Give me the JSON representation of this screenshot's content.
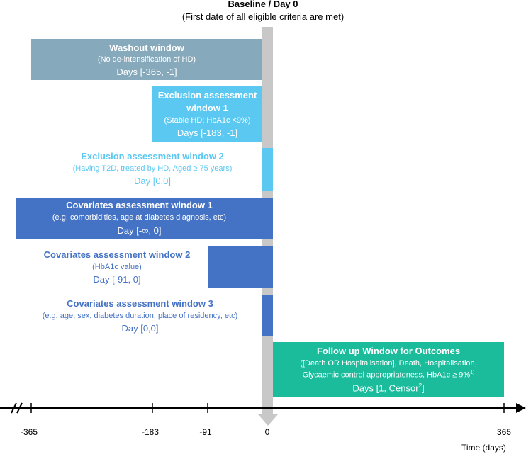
{
  "baseline": {
    "title": "Baseline / Day 0",
    "subtitle": "(First date of all eligible criteria are met)"
  },
  "windows": [
    {
      "id": "washout",
      "title": "Washout window",
      "detail": "(No de-intensification of HD)",
      "days": "Days [-365, -1]",
      "color": "#86a9bc"
    },
    {
      "id": "exclusion1",
      "title_line1": "Exclusion assessment",
      "title_line2": "window 1",
      "detail": "(Stable HD; HbA1c <9%)",
      "days": "Days [-183, -1]",
      "color": "#5bc8f2"
    },
    {
      "id": "exclusion2",
      "title": "Exclusion assessment window 2",
      "detail": "(Having T2D, treated by HD, Aged ≥ 75 years)",
      "days": "Day [0,0]",
      "color": "#5bc8f2"
    },
    {
      "id": "covariates1",
      "title": "Covariates assessment window 1",
      "detail": "(e.g. comorbidities, age at diabetes diagnosis, etc)",
      "days": "Day [-∞, 0]",
      "color": "#4472c4"
    },
    {
      "id": "covariates2",
      "title": "Covariates assessment window 2",
      "detail": "(HbA1c value)",
      "days": "Day [-91, 0]",
      "color": "#4472c4"
    },
    {
      "id": "covariates3",
      "title": "Covariates assessment window 3",
      "detail": "(e.g. age, sex, diabetes duration, place of residency, etc)",
      "days": "Day [0,0]",
      "color": "#4472c4"
    },
    {
      "id": "followup",
      "title": "Follow up Window for Outcomes",
      "detail_line1": "([Death OR Hospitalisation], Death, Hospitalisation,",
      "detail_line2": "Glycaemic control appropriateness, HbA1c ≥ 9%",
      "detail_line2_sup": "1)",
      "days": "Days [1, Censor",
      "days_sup": "2",
      "days_end": "]",
      "color": "#1abc9c"
    }
  ],
  "axis": {
    "ticks": [
      "-365",
      "-183",
      "-91",
      "0",
      "365"
    ],
    "label": "Time (days)",
    "break_symbol": "//"
  },
  "colors": {
    "baseline_bar": "#c8c8c8",
    "axis": "#000000"
  }
}
